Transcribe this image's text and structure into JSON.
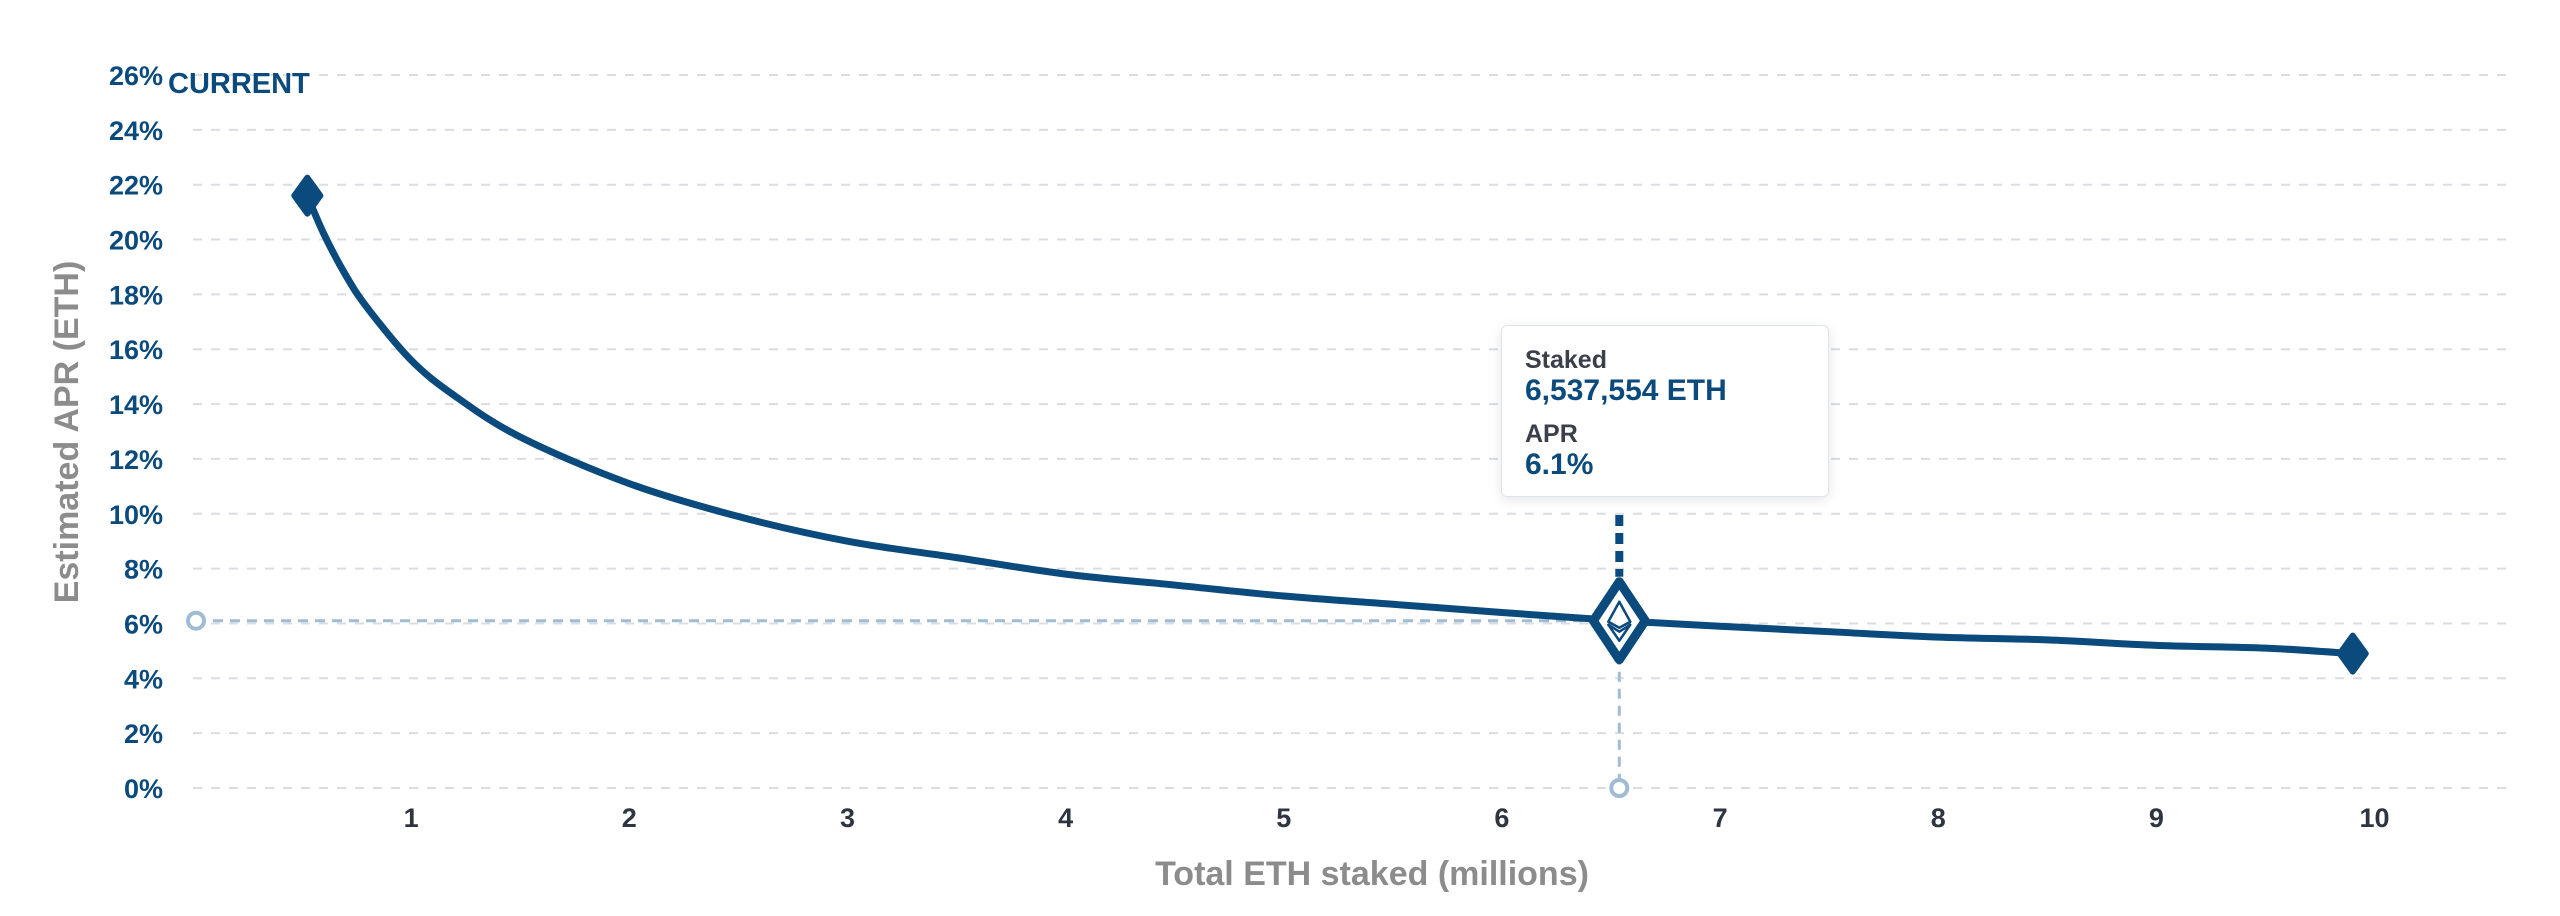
{
  "chart_data": {
    "type": "line",
    "title": "",
    "xlabel": "Total ETH staked (millions)",
    "ylabel": "Estimated APR (ETH)",
    "x_ticks": [
      "1",
      "2",
      "3",
      "4",
      "5",
      "6",
      "7",
      "8",
      "9",
      "10"
    ],
    "y_ticks": [
      "0%",
      "2%",
      "4%",
      "6%",
      "8%",
      "10%",
      "12%",
      "14%",
      "16%",
      "18%",
      "20%",
      "22%",
      "24%",
      "26%"
    ],
    "xlim": [
      0,
      10.3
    ],
    "ylim": [
      0,
      26
    ],
    "grid": true,
    "series": [
      {
        "x": [
          0.524,
          0.6,
          0.7,
          0.8,
          1.0,
          1.2,
          1.5,
          2.0,
          2.5,
          3.0,
          3.5,
          4.0,
          4.5,
          5.0,
          5.5,
          6.0,
          6.538,
          7.0,
          7.5,
          8.0,
          8.5,
          9.0,
          9.5,
          9.9
        ],
        "y": [
          21.6,
          20.2,
          18.7,
          17.5,
          15.6,
          14.3,
          12.8,
          11.1,
          9.9,
          9.0,
          8.4,
          7.8,
          7.4,
          7.0,
          6.7,
          6.4,
          6.1,
          5.9,
          5.7,
          5.5,
          5.4,
          5.2,
          5.1,
          4.9
        ],
        "color": "#0b4a7d"
      }
    ],
    "markers": [
      {
        "x": 0.524,
        "y": 21.6
      },
      {
        "x": 6.538,
        "y": 6.1,
        "current": true
      },
      {
        "x": 9.9,
        "y": 4.9
      }
    ],
    "current_label": "CURRENT"
  },
  "tooltip": {
    "staked_label": "Staked",
    "staked_value": "6,537,554 ETH",
    "apr_label": "APR",
    "apr_value": "6.1%"
  },
  "colors": {
    "line": "#0b4a7d",
    "guide": "#9fbcd3",
    "grid": "#d9dde3"
  }
}
